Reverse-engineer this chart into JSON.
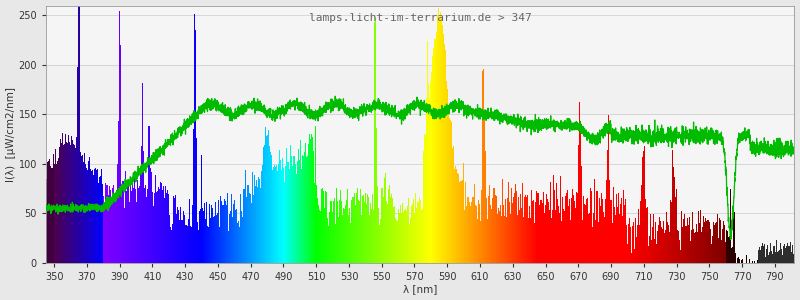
{
  "title": "lamps.licht-im-terrarium.de > 347",
  "xlabel": "λ [nm]",
  "ylabel": "I(λ)  [μW/cm2/nm]",
  "xlim": [
    345,
    802
  ],
  "ylim": [
    0,
    260
  ],
  "yticks": [
    0,
    50,
    100,
    150,
    200,
    250
  ],
  "xticks": [
    350,
    370,
    390,
    410,
    430,
    450,
    470,
    490,
    510,
    530,
    550,
    570,
    590,
    610,
    630,
    650,
    670,
    690,
    710,
    730,
    750,
    770,
    790
  ],
  "background_color": "#e8e8e8",
  "plot_bg_color": "#f5f5f5",
  "grid_color": "#cccccc",
  "title_color": "#666666",
  "title_fontsize": 8,
  "axis_fontsize": 7.5,
  "tick_fontsize": 7,
  "fig_width": 8.0,
  "fig_height": 3.0,
  "dpi": 100
}
